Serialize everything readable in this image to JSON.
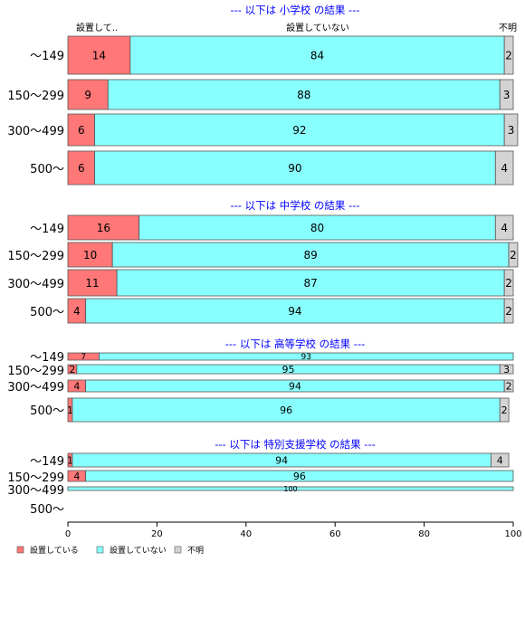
{
  "chart_data": {
    "type": "bar",
    "orientation": "horizontal",
    "stacked": "percent",
    "column_headers": [
      "設置して..",
      "設置していない",
      "不明"
    ],
    "legend": {
      "position": "bottom-left",
      "entries": [
        {
          "name": "設置している",
          "color": "#ff7777"
        },
        {
          "name": "設置していない",
          "color": "#88ffff"
        },
        {
          "name": "不明",
          "color": "#d3d3d3"
        }
      ]
    },
    "xlim": [
      0,
      100
    ],
    "xticks": [
      0,
      20,
      40,
      60,
      80,
      100
    ],
    "groups": [
      {
        "title": "--- 以下は 小学校 の結果 ---",
        "categories": [
          "～149",
          "150～299",
          "300～499",
          "500～"
        ],
        "series": [
          {
            "name": "設置している",
            "values": [
              14,
              9,
              6,
              6
            ]
          },
          {
            "name": "設置していない",
            "values": [
              84,
              88,
              92,
              90
            ]
          },
          {
            "name": "不明",
            "values": [
              2,
              3,
              3,
              4
            ]
          }
        ]
      },
      {
        "title": "--- 以下は 中学校 の結果 ---",
        "categories": [
          "～149",
          "150～299",
          "300～499",
          "500～"
        ],
        "series": [
          {
            "name": "設置している",
            "values": [
              16,
              10,
              11,
              4
            ]
          },
          {
            "name": "設置していない",
            "values": [
              80,
              89,
              87,
              94
            ]
          },
          {
            "name": "不明",
            "values": [
              4,
              2,
              2,
              2
            ]
          }
        ]
      },
      {
        "title": "--- 以下は 高等学校 の結果 ---",
        "categories": [
          "～149",
          "150～299",
          "300～499",
          "500～"
        ],
        "series": [
          {
            "name": "設置している",
            "values": [
              7,
              2,
              4,
              1
            ]
          },
          {
            "name": "設置していない",
            "values": [
              93,
              95,
              94,
              96
            ]
          },
          {
            "name": "不明",
            "values": [
              0,
              3,
              2,
              2
            ]
          }
        ]
      },
      {
        "title": "--- 以下は 特別支援学校 の結果 ---",
        "categories": [
          "～149",
          "150～299",
          "300～499",
          "500～"
        ],
        "series": [
          {
            "name": "設置している",
            "values": [
              1,
              4,
              0,
              null
            ]
          },
          {
            "name": "設置していない",
            "values": [
              94,
              96,
              100,
              null
            ]
          },
          {
            "name": "不明",
            "values": [
              4,
              0,
              0,
              null
            ]
          }
        ]
      }
    ]
  }
}
